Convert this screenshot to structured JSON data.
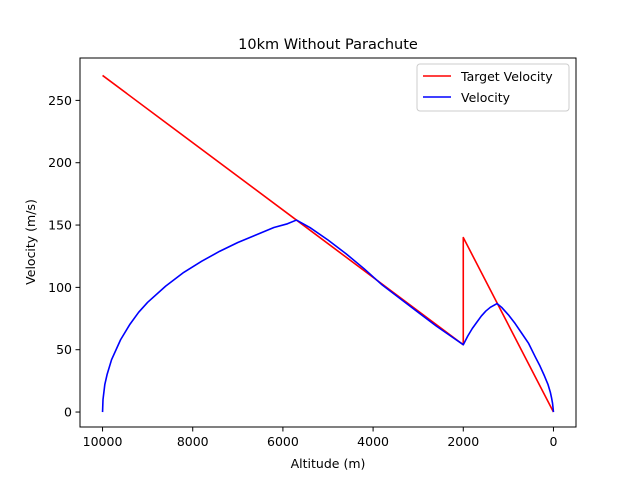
{
  "chart_data": {
    "type": "line",
    "title": "10km Without Parachute",
    "xlabel": "Altitude (m)",
    "ylabel": "Velocity (m/s)",
    "xlim": [
      10500,
      -500
    ],
    "ylim": [
      -12,
      284
    ],
    "x_ticks": [
      10000,
      8000,
      6000,
      4000,
      2000,
      0
    ],
    "y_ticks": [
      0,
      50,
      100,
      150,
      200,
      250
    ],
    "grid": false,
    "legend_position": "top-right",
    "series": [
      {
        "name": "Target Velocity",
        "color": "#ff0000",
        "x": [
          10000,
          5700,
          2000,
          2000,
          0
        ],
        "y": [
          270,
          154,
          54,
          140,
          0
        ]
      },
      {
        "name": "Velocity",
        "color": "#0000ff",
        "x": [
          10000,
          9990,
          9950,
          9900,
          9800,
          9600,
          9400,
          9200,
          9000,
          8600,
          8200,
          7800,
          7400,
          7000,
          6600,
          6200,
          5900,
          5700,
          5400,
          5000,
          4600,
          4200,
          3800,
          3400,
          3000,
          2600,
          2200,
          2000,
          1900,
          1800,
          1700,
          1600,
          1500,
          1400,
          1300,
          1250,
          1150,
          1000,
          850,
          700,
          550,
          400,
          300,
          200,
          120,
          70,
          40,
          20,
          8,
          0
        ],
        "y": [
          0,
          10,
          22,
          30,
          42,
          58,
          70,
          80,
          88,
          101,
          112,
          121,
          129,
          136,
          142,
          148,
          151,
          154,
          148,
          138,
          127,
          115,
          102,
          91,
          80,
          69,
          59,
          54,
          61,
          67,
          72,
          77,
          81,
          84,
          86,
          87,
          84,
          78,
          71,
          63,
          55,
          44,
          37,
          29,
          22,
          16,
          11,
          7,
          3,
          0
        ]
      }
    ]
  }
}
